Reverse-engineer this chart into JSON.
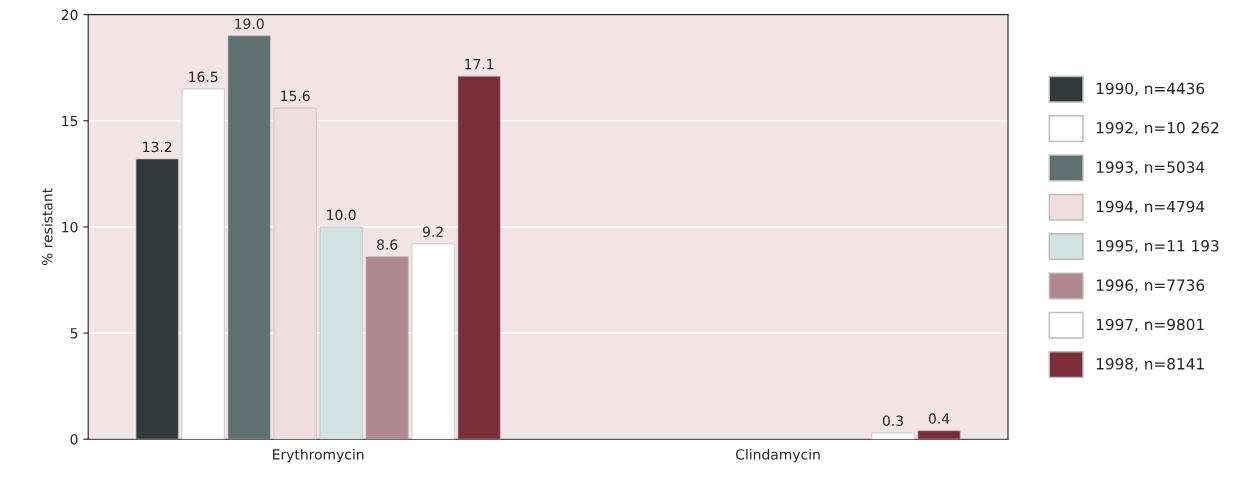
{
  "chart_data": {
    "type": "bar",
    "ylabel": "% resistant",
    "categories": [
      "Erythromycin",
      "Clindamycin"
    ],
    "series": [
      {
        "name": "1990, n=4436",
        "color": "#2f3a3a",
        "values": [
          13.2,
          null
        ],
        "value_labels": [
          "13.2",
          null
        ]
      },
      {
        "name": "1992, n=10 262",
        "color": "#ffffff",
        "values": [
          16.5,
          null
        ],
        "value_labels": [
          "16.5",
          null
        ]
      },
      {
        "name": "1993, n=5034",
        "color": "#5f7070",
        "values": [
          19.0,
          null
        ],
        "value_labels": [
          "19.0",
          null
        ]
      },
      {
        "name": "1994, n=4794",
        "color": "#f0dde0",
        "values": [
          15.6,
          null
        ],
        "value_labels": [
          "15.6",
          null
        ]
      },
      {
        "name": "1995, n=11 193",
        "color": "#d3e2e2",
        "values": [
          10.0,
          null
        ],
        "value_labels": [
          "10.0",
          null
        ]
      },
      {
        "name": "1996, n=7736",
        "color": "#b08890",
        "values": [
          8.6,
          null
        ],
        "value_labels": [
          "8.6",
          null
        ]
      },
      {
        "name": "1997, n=9801",
        "color": "#ffffff",
        "values": [
          9.2,
          0.3
        ],
        "value_labels": [
          "9.2",
          "0.3"
        ]
      },
      {
        "name": "1998, n=8141",
        "color": "#7a2e3a",
        "values": [
          17.1,
          0.4
        ],
        "value_labels": [
          "17.1",
          "0.4"
        ]
      }
    ],
    "ylim": [
      0,
      20
    ],
    "yticks": [
      0,
      5,
      10,
      15,
      20
    ],
    "grid": "y",
    "legend": "right"
  }
}
